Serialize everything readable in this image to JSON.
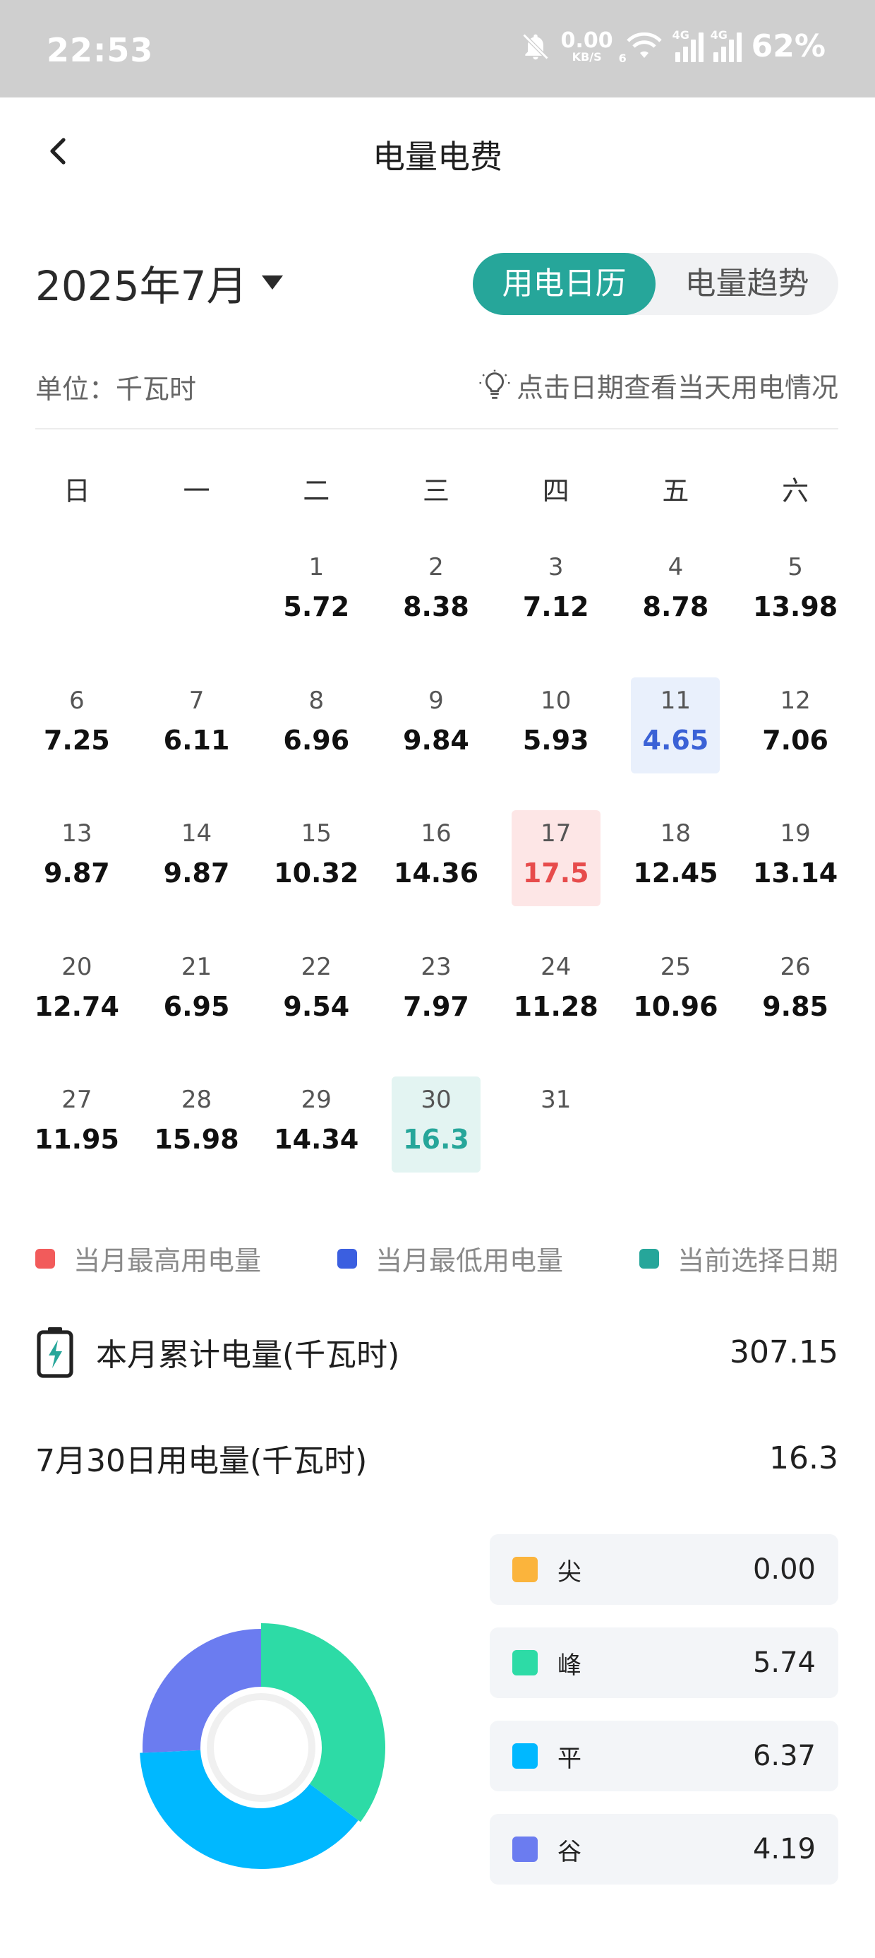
{
  "status_bar": {
    "time": "22:53",
    "net_speed_value": "0.00",
    "net_speed_unit": "KB/S",
    "wifi_tag": "6",
    "signal1_tag": "4G",
    "signal2_tag": "4G",
    "battery": "62%"
  },
  "header": {
    "title": "电量电费"
  },
  "calendar_header": {
    "month": "2025年7月",
    "tabs": [
      "用电日历",
      "电量趋势"
    ],
    "active_tab": "用电日历",
    "unit": "单位：千瓦时",
    "hint": "点击日期查看当天用电情况"
  },
  "weekdays": [
    "日",
    "一",
    "二",
    "三",
    "四",
    "五",
    "六"
  ],
  "days": [
    {
      "day": "",
      "value": ""
    },
    {
      "day": "",
      "value": ""
    },
    {
      "day": "1",
      "value": "5.72"
    },
    {
      "day": "2",
      "value": "8.38"
    },
    {
      "day": "3",
      "value": "7.12"
    },
    {
      "day": "4",
      "value": "8.78"
    },
    {
      "day": "5",
      "value": "13.98"
    },
    {
      "day": "6",
      "value": "7.25"
    },
    {
      "day": "7",
      "value": "6.11"
    },
    {
      "day": "8",
      "value": "6.96"
    },
    {
      "day": "9",
      "value": "9.84"
    },
    {
      "day": "10",
      "value": "5.93"
    },
    {
      "day": "11",
      "value": "4.65",
      "state": "low"
    },
    {
      "day": "12",
      "value": "7.06"
    },
    {
      "day": "13",
      "value": "9.87"
    },
    {
      "day": "14",
      "value": "9.87"
    },
    {
      "day": "15",
      "value": "10.32"
    },
    {
      "day": "16",
      "value": "14.36"
    },
    {
      "day": "17",
      "value": "17.5",
      "state": "high"
    },
    {
      "day": "18",
      "value": "12.45"
    },
    {
      "day": "19",
      "value": "13.14"
    },
    {
      "day": "20",
      "value": "12.74"
    },
    {
      "day": "21",
      "value": "6.95"
    },
    {
      "day": "22",
      "value": "9.54"
    },
    {
      "day": "23",
      "value": "7.97"
    },
    {
      "day": "24",
      "value": "11.28"
    },
    {
      "day": "25",
      "value": "10.96"
    },
    {
      "day": "26",
      "value": "9.85"
    },
    {
      "day": "27",
      "value": "11.95"
    },
    {
      "day": "28",
      "value": "15.98"
    },
    {
      "day": "29",
      "value": "14.34"
    },
    {
      "day": "30",
      "value": "16.3",
      "state": "sel"
    },
    {
      "day": "31",
      "value": ""
    }
  ],
  "legend": [
    {
      "label": "当月最高用电量",
      "color": "#f25b5b"
    },
    {
      "label": "当月最低用电量",
      "color": "#3b5fe0"
    },
    {
      "label": "当前选择日期",
      "color": "#26a69a"
    }
  ],
  "summary": {
    "month_total_label": "本月累计电量(千瓦时)",
    "month_total_value": "307.15",
    "day_label": "7月30日用电量(千瓦时)",
    "day_value": "16.3"
  },
  "tariffs": [
    {
      "name": "尖",
      "value": "0.00",
      "color": "#fbb43c"
    },
    {
      "name": "峰",
      "value": "5.74",
      "color": "#2ddba6"
    },
    {
      "name": "平",
      "value": "6.37",
      "color": "#00b8ff"
    },
    {
      "name": "谷",
      "value": "4.19",
      "color": "#6b7cf0"
    }
  ],
  "colors": {
    "accent": "#26a69a",
    "low": "#3b62d6",
    "high": "#e74c4c"
  }
}
